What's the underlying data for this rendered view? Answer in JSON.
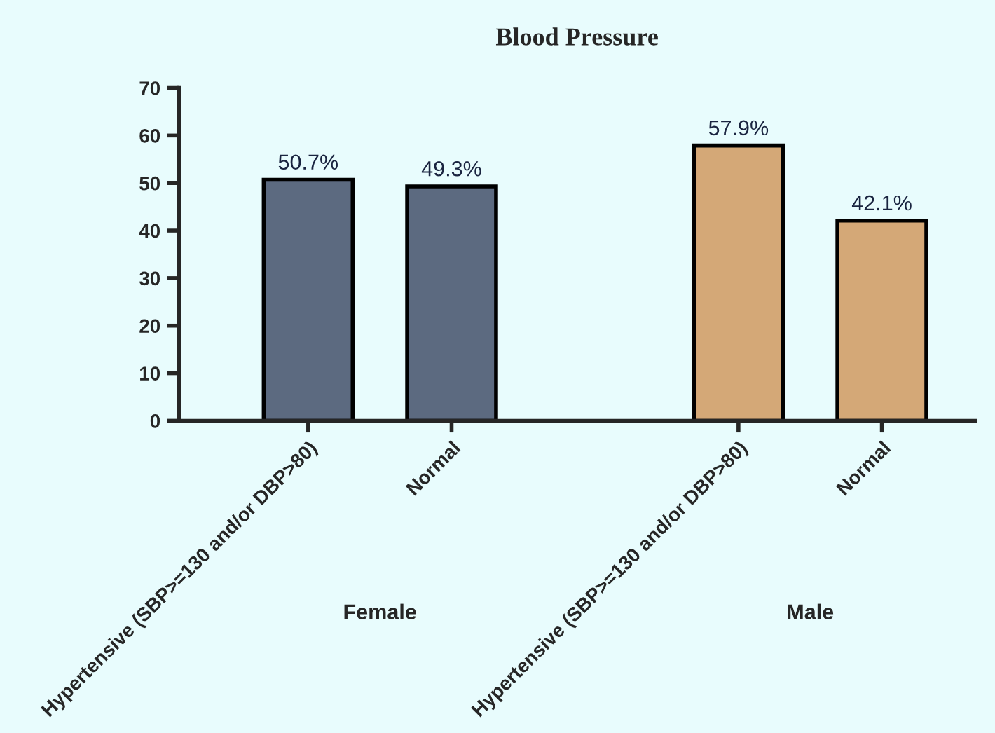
{
  "chart_data": {
    "type": "bar",
    "title": "Blood Pressure",
    "categories": [
      "Hypertensive (SBP>=130 and/or DBP>80)",
      "Normal",
      null,
      "Hypertensive (SBP>=130 and/or DBP>80)",
      "Normal"
    ],
    "series": [
      {
        "color": "#5c6a80",
        "values": [
          50.7,
          49.3,
          null,
          null,
          null
        ],
        "value_labels": [
          "50.7%",
          "49.3%",
          null,
          null,
          null
        ]
      },
      {
        "color": "#d4a877",
        "values": [
          null,
          null,
          null,
          57.9,
          42.1
        ],
        "value_labels": [
          null,
          null,
          null,
          "57.9%",
          "42.1%"
        ]
      }
    ],
    "ylim": [
      0,
      70
    ],
    "yticks": [
      0,
      10,
      20,
      30,
      40,
      50,
      60,
      70
    ],
    "grid": false,
    "legend": false,
    "annotations": [
      "Female",
      "Male"
    ]
  }
}
